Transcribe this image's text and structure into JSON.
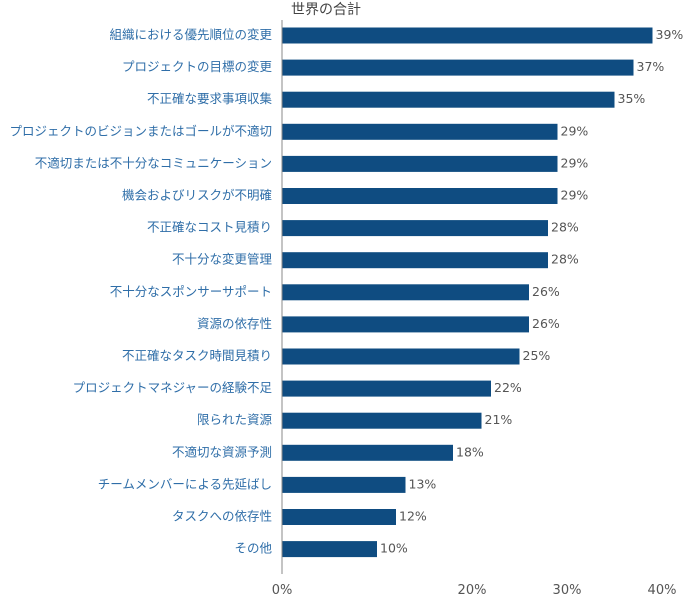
{
  "chart_data": {
    "type": "bar",
    "orientation": "horizontal",
    "title": "世界の合計",
    "categories": [
      "組織における優先順位の変更",
      "プロジェクトの目標の変更",
      "不正確な要求事項収集",
      "プロジェクトのビジョンまたはゴールが不適切",
      "不適切または不十分なコミュニケーション",
      "機会およびリスクが不明確",
      "不正確なコスト見積り",
      "不十分な変更管理",
      "不十分なスポンサーサポート",
      "資源の依存性",
      "不正確なタスク時間見積り",
      "プロジェクトマネジャーの経験不足",
      "限られた資源",
      "不適切な資源予測",
      "チームメンバーによる先延ばし",
      "タスクへの依存性",
      "その他"
    ],
    "values": [
      39,
      37,
      35,
      29,
      29,
      29,
      28,
      28,
      26,
      26,
      25,
      22,
      21,
      18,
      13,
      12,
      10
    ],
    "value_labels": [
      "39%",
      "37%",
      "35%",
      "29%",
      "29%",
      "29%",
      "28%",
      "28%",
      "26%",
      "26%",
      "25%",
      "22%",
      "21%",
      "18%",
      "13%",
      "12%",
      "10%"
    ],
    "xlim": [
      0,
      40
    ],
    "xticks": [
      0,
      20,
      30,
      40
    ],
    "xtick_labels": [
      "0%",
      "20%",
      "30%",
      "40%"
    ],
    "grid": false,
    "bar_color": "#0f4c81",
    "label_color": "#2f6ea8"
  }
}
